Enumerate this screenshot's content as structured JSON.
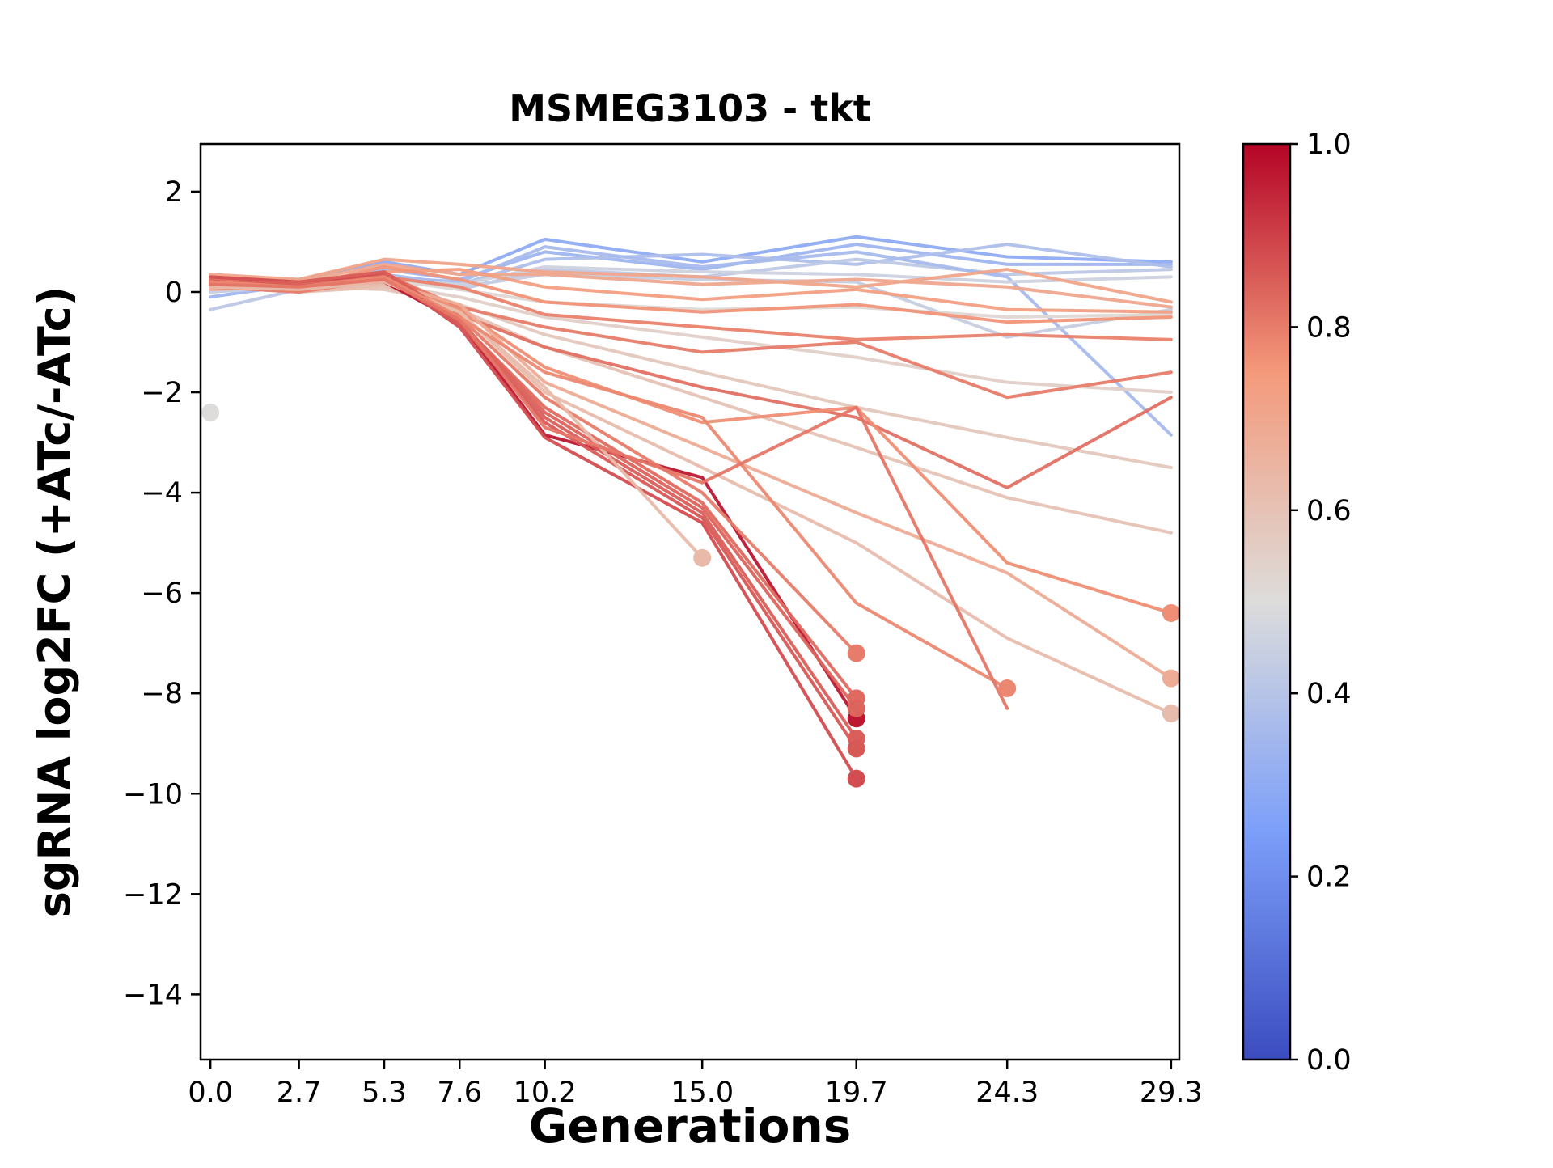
{
  "title": "MSMEG3103 - tkt",
  "axes": {
    "xlabel": "Generations",
    "ylabel": "sgRNA log2FC (+ATc/-ATc)"
  },
  "chart_data": {
    "type": "line",
    "title": "MSMEG3103 - tkt",
    "xlabel": "Generations",
    "ylabel": "sgRNA log2FC (+ATc/-ATc)",
    "x": [
      0.0,
      2.7,
      5.3,
      7.6,
      10.2,
      15.0,
      19.7,
      24.3,
      29.3
    ],
    "x_tick_labels": [
      "0.0",
      "2.7",
      "5.3",
      "7.6",
      "10.2",
      "15.0",
      "19.7",
      "24.3",
      "29.3"
    ],
    "y_ticks": [
      2,
      0,
      -2,
      -4,
      -6,
      -8,
      -10,
      -12,
      -14
    ],
    "y_tick_labels": [
      "2",
      "0",
      "−2",
      "−4",
      "−6",
      "−8",
      "−10",
      "−12",
      "−14"
    ],
    "xlim": [
      -0.3,
      29.55
    ],
    "ylim": [
      -15.3,
      2.95
    ],
    "grid": false,
    "legend": false,
    "colormap": "coolwarm",
    "colorbar": {
      "min": 0.0,
      "max": 1.0,
      "ticks": [
        1.0,
        0.8,
        0.6,
        0.4,
        0.2,
        0.0
      ],
      "labels": [
        "1.0",
        "0.8",
        "0.6",
        "0.4",
        "0.2",
        "0.0"
      ]
    },
    "series": [
      {
        "c": 0.3,
        "y": [
          0.15,
          0.25,
          0.6,
          0.35,
          1.05,
          0.6,
          1.1,
          0.7,
          0.6
        ]
      },
      {
        "c": 0.34,
        "y": [
          -0.1,
          0.15,
          0.45,
          0.25,
          0.8,
          0.45,
          0.95,
          0.55,
          0.55
        ]
      },
      {
        "c": 0.38,
        "y": [
          0.05,
          0.2,
          0.35,
          0.15,
          0.65,
          0.75,
          0.55,
          0.95,
          0.5
        ]
      },
      {
        "c": 0.42,
        "y": [
          -0.35,
          0.05,
          0.25,
          0.05,
          0.45,
          0.3,
          0.65,
          0.35,
          0.45
        ]
      },
      {
        "c": 0.36,
        "y": [
          0.1,
          0.1,
          0.3,
          0.2,
          0.9,
          0.5,
          0.8,
          0.3,
          -2.85
        ]
      },
      {
        "c": 0.44,
        "y": [
          0.0,
          0.1,
          0.2,
          0.1,
          0.35,
          0.25,
          0.2,
          -0.9,
          -0.35
        ]
      },
      {
        "c": 0.46,
        "y": [
          0.05,
          0.15,
          0.25,
          0.15,
          0.5,
          0.4,
          0.35,
          0.2,
          0.3
        ]
      },
      {
        "c": 0.52,
        "y": [
          0.1,
          0.15,
          0.25,
          0.05,
          -0.2,
          -0.35,
          -0.3,
          -0.5,
          -0.45
        ]
      },
      {
        "c": 0.55,
        "y": [
          0.05,
          0.1,
          0.15,
          -0.1,
          -0.5,
          -0.9,
          -1.3,
          -1.8,
          -2.0
        ]
      },
      {
        "c": 0.58,
        "y": [
          0.15,
          0.1,
          0.05,
          -0.25,
          -0.85,
          -1.6,
          -2.3,
          -2.9,
          -3.5
        ]
      },
      {
        "c": 0.6,
        "y": [
          0.1,
          0.0,
          0.1,
          -0.35,
          -1.1,
          -2.1,
          -3.1,
          -4.1,
          -4.8
        ]
      },
      {
        "c": 0.7,
        "y": [
          0.3,
          0.2,
          0.55,
          0.35,
          0.35,
          0.15,
          0.25,
          0.1,
          -0.3
        ]
      },
      {
        "c": 0.73,
        "y": [
          0.2,
          0.15,
          0.4,
          0.45,
          0.1,
          -0.15,
          0.05,
          -0.35,
          -0.4
        ]
      },
      {
        "c": 0.76,
        "y": [
          0.25,
          0.1,
          0.5,
          0.25,
          -0.2,
          -0.4,
          -0.25,
          -0.6,
          -0.5
        ]
      },
      {
        "c": 0.79,
        "y": [
          0.15,
          0.05,
          0.3,
          0.1,
          -0.45,
          -0.7,
          -0.95,
          -0.85,
          -0.95
        ]
      },
      {
        "c": 0.71,
        "y": [
          0.35,
          0.25,
          0.65,
          0.55,
          0.4,
          0.3,
          0.1,
          0.45,
          -0.2
        ]
      },
      {
        "c": 0.8,
        "y": [
          0.2,
          0.1,
          0.35,
          -0.3,
          -0.7,
          -1.2,
          -1.0,
          -2.1,
          -1.6
        ]
      },
      {
        "c": 0.82,
        "y": [
          0.25,
          0.15,
          0.4,
          -0.45,
          -1.1,
          -1.9,
          -2.5,
          -3.9,
          -2.1
        ]
      },
      {
        "c": 0.77,
        "dot": true,
        "y": [
          0.1,
          0.05,
          0.25,
          -0.35,
          -1.5,
          -2.6,
          -2.3,
          -5.4,
          -6.4
        ]
      },
      {
        "c": 0.68,
        "dot": true,
        "y": [
          0.05,
          0.1,
          0.2,
          -0.25,
          -1.8,
          -3.1,
          -4.4,
          -5.6,
          -7.7
        ]
      },
      {
        "c": 0.62,
        "dot": true,
        "y": [
          0.1,
          0.0,
          0.15,
          -0.4,
          -2.0,
          -3.5,
          -5.0,
          -6.9,
          -8.4
        ]
      },
      {
        "c": 0.97,
        "dot": true,
        "y": [
          0.2,
          0.1,
          0.2,
          -0.6,
          -2.85,
          -3.7,
          -8.5
        ]
      },
      {
        "c": 0.88,
        "dot": true,
        "y": [
          0.3,
          0.2,
          0.35,
          -0.7,
          -2.9,
          -4.6,
          -9.7
        ]
      },
      {
        "c": 0.85,
        "dot": true,
        "y": [
          0.15,
          0.2,
          0.4,
          -0.55,
          -2.5,
          -4.4,
          -8.9
        ]
      },
      {
        "c": 0.83,
        "dot": true,
        "y": [
          0.2,
          0.1,
          0.3,
          -0.6,
          -2.3,
          -4.2,
          -8.1
        ]
      },
      {
        "c": 0.8,
        "dot": true,
        "y": [
          0.1,
          0.0,
          0.25,
          -0.5,
          -2.1,
          -4.0,
          -7.2
        ]
      },
      {
        "c": 0.86,
        "dot": true,
        "y": [
          0.18,
          0.12,
          0.28,
          -0.62,
          -2.6,
          -4.5,
          -9.1
        ]
      },
      {
        "c": 0.84,
        "dot": true,
        "y": [
          0.22,
          0.08,
          0.32,
          -0.58,
          -2.4,
          -4.3,
          -8.3
        ]
      },
      {
        "c": 0.63,
        "dot": true,
        "y": [
          0.1,
          0.05,
          0.2,
          -0.4,
          -1.9,
          -5.3
        ]
      },
      {
        "c": 0.78,
        "dot": true,
        "y": [
          0.2,
          0.1,
          0.3,
          -0.5,
          -1.6,
          -2.5,
          -6.2,
          -7.9
        ]
      },
      {
        "c": 0.81,
        "y": [
          0.15,
          0.1,
          0.25,
          -0.55,
          -2.7,
          -3.8,
          -2.3,
          -8.3
        ]
      }
    ],
    "points": [
      {
        "c": 0.5,
        "x": 0.0,
        "y": -2.4
      }
    ]
  }
}
